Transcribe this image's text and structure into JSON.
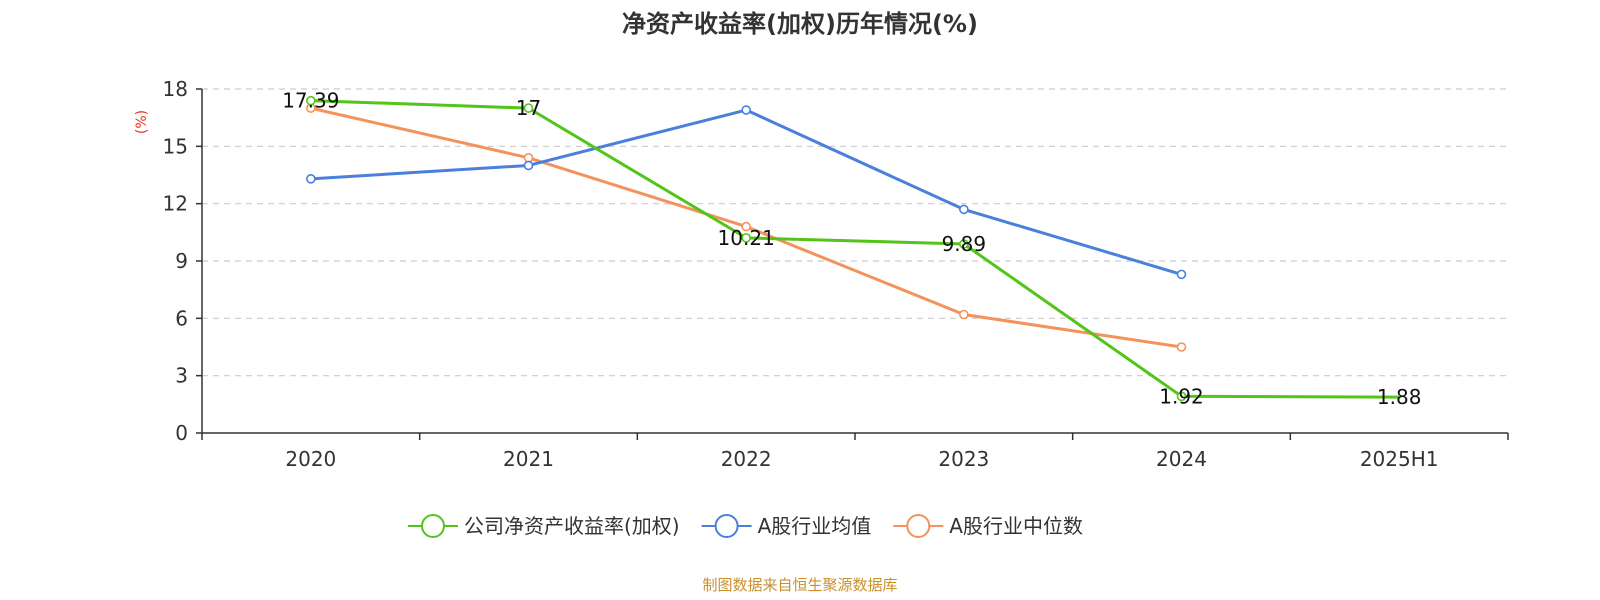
{
  "chart_data": {
    "type": "line",
    "title": "净资产收益率(加权)历年情况(%)",
    "ylabel": "(%)",
    "categories": [
      "2020",
      "2021",
      "2022",
      "2023",
      "2024",
      "2025H1"
    ],
    "ylim": [
      0,
      18
    ],
    "yticks": [
      "0",
      "3",
      "6",
      "9",
      "12",
      "15",
      "18"
    ],
    "grid": true,
    "legend_position": "bottom",
    "series": [
      {
        "name": "公司净资产收益率(加权)",
        "color": "#52c41a",
        "values": [
          17.39,
          17,
          10.21,
          9.89,
          1.92,
          1.88
        ],
        "labels": [
          "17.39",
          "17",
          "10.21",
          "9.89",
          "1.92",
          "1.88"
        ]
      },
      {
        "name": "A股行业均值",
        "color": "#4a7fdc",
        "values": [
          13.3,
          14.0,
          16.9,
          11.7,
          8.3,
          null
        ]
      },
      {
        "name": "A股行业中位数",
        "color": "#f4925c",
        "values": [
          17.0,
          14.4,
          10.8,
          6.2,
          4.5,
          null
        ]
      }
    ]
  },
  "ylabel_color": "#e8341c",
  "source": {
    "text": "制图数据来自恒生聚源数据库",
    "color": "#c8902e"
  }
}
